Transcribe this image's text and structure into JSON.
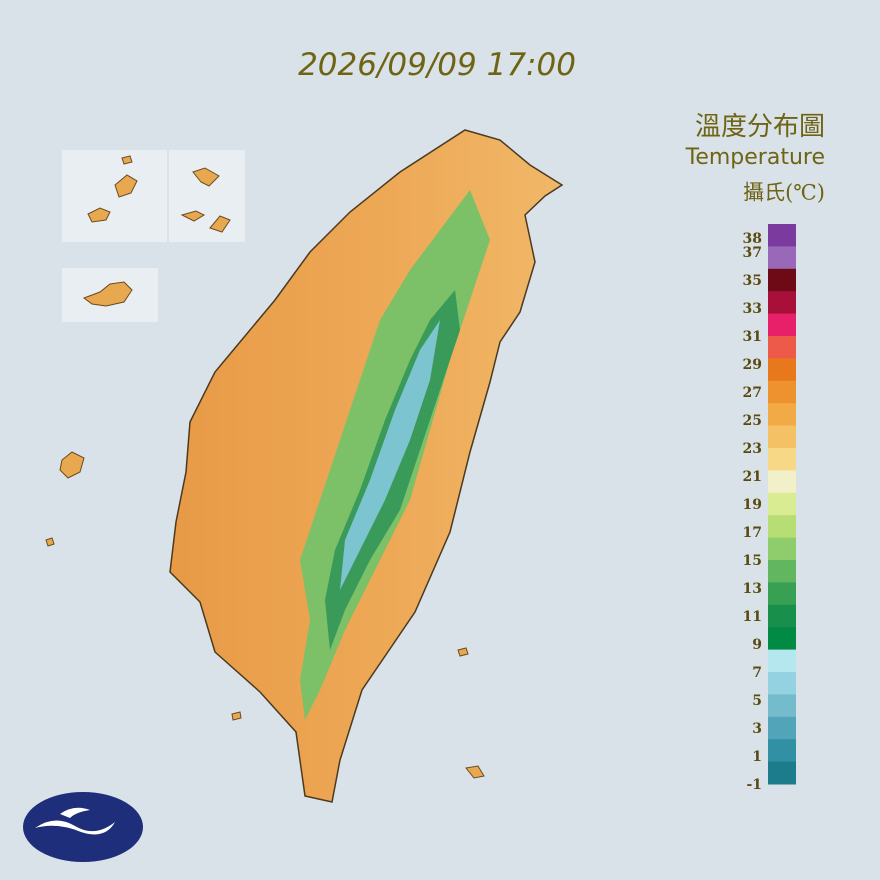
{
  "header": {
    "timestamp": "2026/09/09 17:00"
  },
  "legend": {
    "title": "溫度分布圖",
    "subtitle": "Temperature",
    "unit": "攝氏(℃)",
    "labels": [
      38,
      37,
      35,
      33,
      31,
      29,
      27,
      25,
      23,
      21,
      19,
      17,
      15,
      13,
      11,
      9,
      7,
      5,
      3,
      1,
      -1
    ],
    "colors": [
      "#7a3a9e",
      "#9a68b8",
      "#6e0a16",
      "#a8103a",
      "#e8206a",
      "#ee5a4a",
      "#e8781c",
      "#ee9230",
      "#f2aa46",
      "#f4c264",
      "#f6d886",
      "#f2f0c8",
      "#daec92",
      "#b6de74",
      "#8ecc6c",
      "#62b660",
      "#38a052",
      "#18904c",
      "#008a44",
      "#b4e8ee",
      "#94d2e2",
      "#74bccc",
      "#52a4b8",
      "#3290a4",
      "#1c7c8c"
    ]
  }
}
